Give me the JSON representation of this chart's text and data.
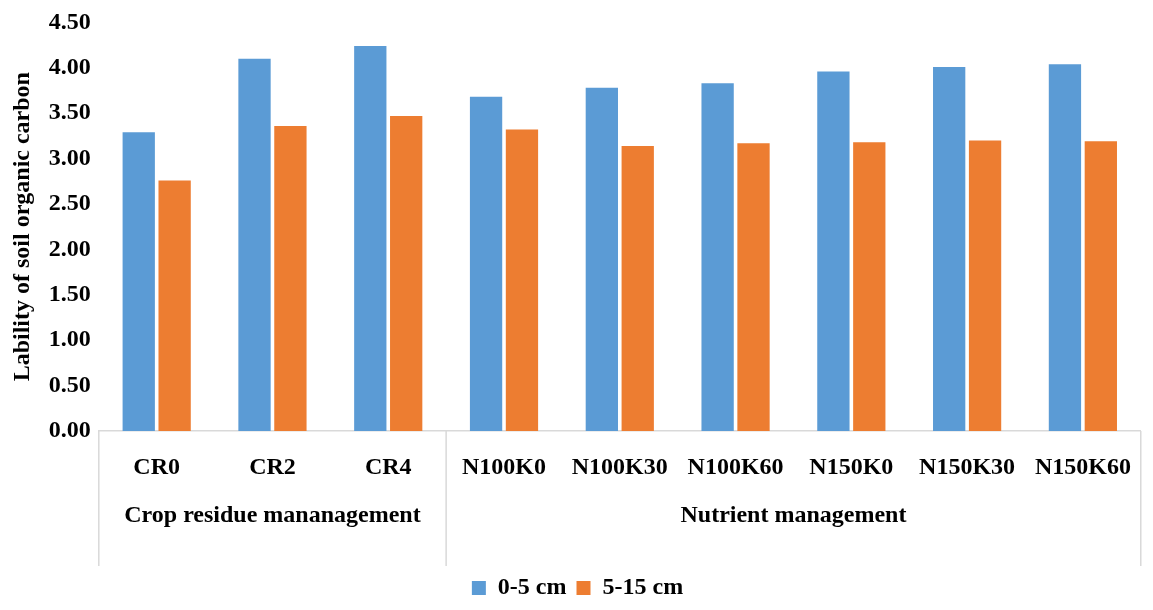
{
  "chart_data": {
    "type": "bar",
    "ylabel": "Lability of soil organic carbon",
    "categories": [
      "CR0",
      "CR2",
      "CR4",
      "N100K0",
      "N100K30",
      "N100K60",
      "N150K0",
      "N150K30",
      "N150K60"
    ],
    "series": [
      {
        "name": "0-5 cm",
        "color": "#5b9bd5",
        "values": [
          3.29,
          4.1,
          4.24,
          3.68,
          3.78,
          3.83,
          3.96,
          4.01,
          4.04
        ]
      },
      {
        "name": "5-15 cm",
        "color": "#ed7d31",
        "values": [
          2.76,
          3.36,
          3.47,
          3.32,
          3.14,
          3.17,
          3.18,
          3.2,
          3.19
        ]
      }
    ],
    "ylim": [
      0,
      4.5
    ],
    "yticks": [
      {
        "value": 0,
        "label": "0.00"
      },
      {
        "value": 0.5,
        "label": "0.50"
      },
      {
        "value": 1,
        "label": "1.00"
      },
      {
        "value": 1.5,
        "label": "1.50"
      },
      {
        "value": 2,
        "label": "2.00"
      },
      {
        "value": 2.5,
        "label": "2.50"
      },
      {
        "value": 3,
        "label": "3.00"
      },
      {
        "value": 3.5,
        "label": "3.50"
      },
      {
        "value": 4,
        "label": "4.00"
      },
      {
        "value": 4.5,
        "label": "4.50"
      }
    ],
    "annotations": [
      "Crop residue mananagement",
      "Nutrient management"
    ],
    "grid": false,
    "legend": "bottom"
  }
}
